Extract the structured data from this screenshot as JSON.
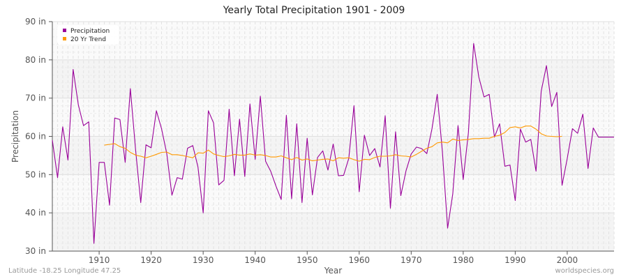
{
  "title": "Yearly Total Precipitation 1901 - 2009",
  "footer": {
    "location": "Latitude -18.25 Longitude 47.25",
    "source": "worldspecies.org"
  },
  "legend": [
    {
      "label": "Precipitation",
      "color": "#990099"
    },
    {
      "label": "20 Yr Trend",
      "color": "#ff9900"
    }
  ],
  "chart_data": {
    "type": "line",
    "title": "Yearly Total Precipitation 1901 - 2009",
    "xlabel": "Year",
    "ylabel": "Precipitation",
    "xlim": [
      1901,
      2009
    ],
    "ylim": [
      30,
      90
    ],
    "yticks": [
      "30 in",
      "40 in",
      "50 in",
      "60 in",
      "70 in",
      "80 in",
      "90 in"
    ],
    "xticks": [
      1910,
      1920,
      1930,
      1940,
      1950,
      1960,
      1970,
      1980,
      1990,
      2000
    ],
    "legend_position": "top-left",
    "series": [
      {
        "name": "Precipitation",
        "color": "#990099",
        "x": [
          1901,
          1902,
          1903,
          1904,
          1905,
          1906,
          1907,
          1908,
          1909,
          1910,
          1911,
          1912,
          1913,
          1914,
          1915,
          1916,
          1917,
          1918,
          1919,
          1920,
          1921,
          1922,
          1923,
          1924,
          1925,
          1926,
          1927,
          1928,
          1929,
          1930,
          1931,
          1932,
          1933,
          1934,
          1935,
          1936,
          1937,
          1938,
          1939,
          1940,
          1941,
          1942,
          1943,
          1944,
          1945,
          1946,
          1947,
          1948,
          1949,
          1950,
          1951,
          1952,
          1953,
          1954,
          1955,
          1956,
          1957,
          1958,
          1959,
          1960,
          1961,
          1962,
          1963,
          1964,
          1965,
          1966,
          1967,
          1968,
          1969,
          1970,
          1971,
          1972,
          1973,
          1974,
          1975,
          1976,
          1977,
          1978,
          1979,
          1980,
          1981,
          1982,
          1983,
          1984,
          1985,
          1986,
          1987,
          1988,
          1989,
          1990,
          1991,
          1992,
          1993,
          1994,
          1995,
          1996,
          1997,
          1998,
          1999,
          2000,
          2001,
          2002,
          2003,
          2004,
          2005,
          2006,
          2007,
          2008,
          2009
        ],
        "values": [
          59,
          49.2,
          62.5,
          53.8,
          77.5,
          68.2,
          62.8,
          63.8,
          32,
          53.2,
          53.2,
          42,
          64.8,
          64.4,
          53.2,
          72.5,
          56.5,
          42.7,
          57.8,
          57,
          66.7,
          62,
          55.5,
          44.6,
          49.2,
          48.8,
          56.9,
          57.6,
          52,
          40,
          66.7,
          63.5,
          47.3,
          48.5,
          67.1,
          49.7,
          64.5,
          49.5,
          68.5,
          54,
          70.5,
          53.5,
          50.8,
          47,
          43.5,
          65.5,
          43.7,
          63.3,
          42.7,
          59.5,
          44.7,
          54.5,
          56.2,
          51.2,
          58,
          49.7,
          49.8,
          54.3,
          68,
          45.5,
          60.3,
          55,
          56.8,
          52,
          65.4,
          41.2,
          61.2,
          44.5,
          51,
          55.4,
          57.2,
          56.8,
          55.5,
          62,
          71,
          56,
          36,
          45,
          62.8,
          48.7,
          61,
          84.3,
          75.5,
          70.3,
          71,
          59.8,
          63.3,
          52.2,
          52.5,
          43.2,
          61.9,
          58.5,
          59.2,
          50.9,
          71.8,
          78.5,
          67.8,
          71.5,
          47.2,
          54.2,
          62,
          60.8,
          65.8,
          51.6,
          62.2,
          59.8,
          59.8,
          59.8,
          59.8
        ]
      },
      {
        "name": "20 Yr Trend",
        "color": "#ff9900",
        "x": [
          1911,
          1912,
          1913,
          1914,
          1915,
          1916,
          1917,
          1918,
          1919,
          1920,
          1921,
          1922,
          1923,
          1924,
          1925,
          1926,
          1927,
          1928,
          1929,
          1930,
          1931,
          1932,
          1933,
          1934,
          1935,
          1936,
          1937,
          1938,
          1939,
          1940,
          1941,
          1942,
          1943,
          1944,
          1945,
          1946,
          1947,
          1948,
          1949,
          1950,
          1951,
          1952,
          1953,
          1954,
          1955,
          1956,
          1957,
          1958,
          1959,
          1960,
          1961,
          1962,
          1963,
          1964,
          1965,
          1966,
          1967,
          1968,
          1969,
          1970,
          1971,
          1972,
          1973,
          1974,
          1975,
          1976,
          1977,
          1978,
          1979,
          1980,
          1981,
          1982,
          1983,
          1984,
          1985,
          1986,
          1987,
          1988,
          1989,
          1990,
          1991,
          1992,
          1993,
          1994,
          1995,
          1996,
          1997,
          1998,
          1999
        ],
        "values": [
          57.7,
          57.9,
          58.1,
          57.3,
          56.9,
          55.8,
          55.1,
          54.8,
          54.4,
          54.8,
          55.3,
          55.8,
          55.9,
          55.2,
          55.2,
          55,
          54.7,
          54.4,
          55.7,
          55.6,
          56.4,
          55.4,
          55,
          54.7,
          54.9,
          55.3,
          55.1,
          55.1,
          55.4,
          55.1,
          55.2,
          55,
          54.6,
          54.6,
          54.9,
          54.4,
          53.9,
          54.5,
          53.8,
          54.1,
          53.6,
          53.8,
          54,
          54.1,
          53.6,
          54.4,
          54.3,
          54.4,
          53.9,
          53.5,
          54,
          53.9,
          54.5,
          54.8,
          54.8,
          54.9,
          55.2,
          54.9,
          54.8,
          54.6,
          55.3,
          56.1,
          56.9,
          57.3,
          58.3,
          58.5,
          58.3,
          59.3,
          58.9,
          59.1,
          59.2,
          59.4,
          59.4,
          59.5,
          59.5,
          60,
          60.3,
          61,
          62.3,
          62.5,
          62.2,
          62.7,
          62.7,
          61.9,
          60.7,
          60.1,
          60,
          59.9,
          60
        ]
      }
    ]
  }
}
